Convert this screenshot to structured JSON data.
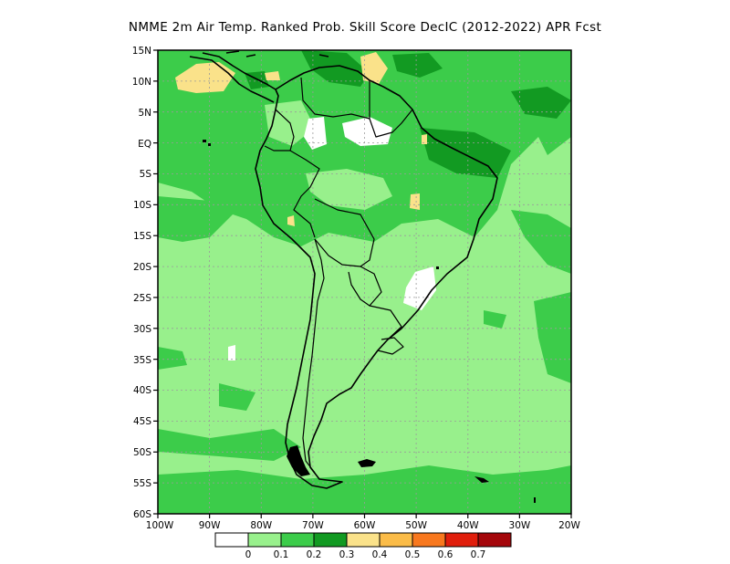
{
  "title": "NMME  2m Air Temp. Ranked Prob. Skill Score DecIC (2012-2022) APR Fcst",
  "map": {
    "lat_labels": [
      "15N",
      "10N",
      "5N",
      "EQ",
      "5S",
      "10S",
      "15S",
      "20S",
      "25S",
      "30S",
      "35S",
      "40S",
      "45S",
      "50S",
      "55S",
      "60S"
    ],
    "lon_labels": [
      "100W",
      "90W",
      "80W",
      "70W",
      "60W",
      "50W",
      "40W",
      "30W",
      "20W"
    ],
    "ocean_background_color": "#98f08c"
  },
  "legend": {
    "bins": [
      {
        "color": "#ffffff"
      },
      {
        "color": "#98f08c"
      },
      {
        "color": "#3ccc4a"
      },
      {
        "color": "#129a22"
      },
      {
        "color": "#fae28a"
      },
      {
        "color": "#fbbc48"
      },
      {
        "color": "#f8781e"
      },
      {
        "color": "#e01e0c"
      },
      {
        "color": "#a4060a"
      }
    ],
    "labels": [
      "0",
      "0.1",
      "0.2",
      "0.3",
      "0.4",
      "0.5",
      "0.6",
      "0.7"
    ]
  }
}
